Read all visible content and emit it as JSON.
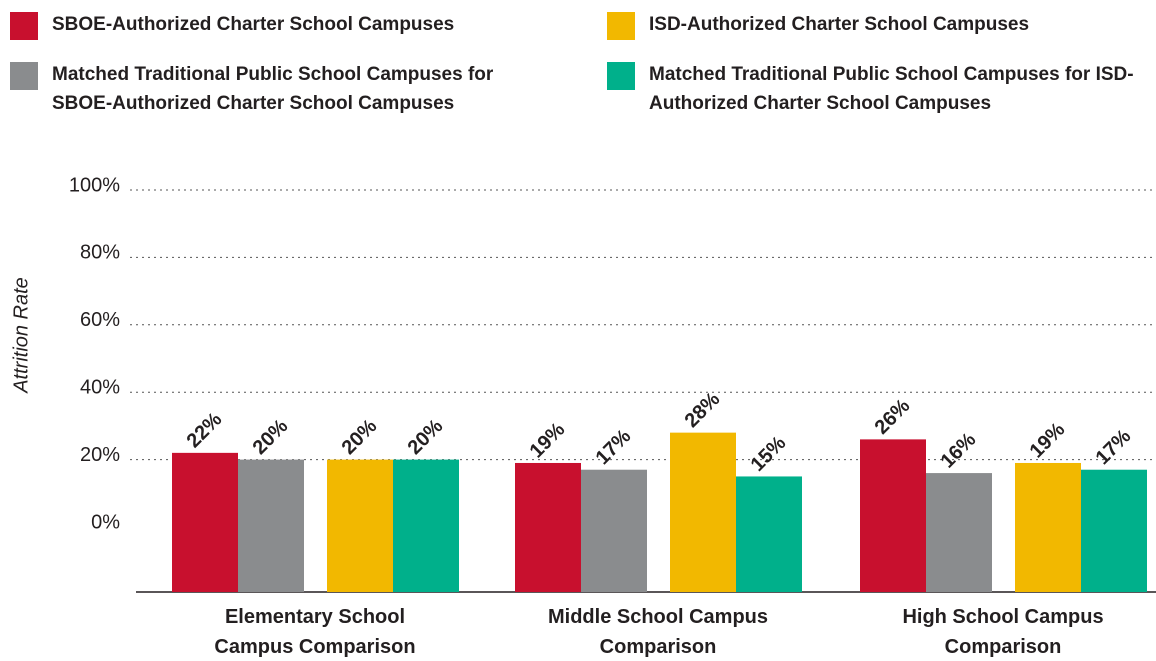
{
  "chart_data": {
    "type": "bar",
    "y_label": "Attrition Rate",
    "categories": [
      "Elementary School Campus Comparison",
      "Middle School Campus Comparison",
      "High School Campus Comparison"
    ],
    "series": [
      {
        "name": "SBOE-Authorized Charter School Campuses",
        "color": "#c8102e",
        "values": [
          22,
          19,
          26
        ],
        "value_labels": [
          "22%",
          "19%",
          "26%"
        ]
      },
      {
        "name": "Matched Traditional Public School Campuses for SBOE-Authorized Charter School Campuses",
        "color": "#8a8c8e",
        "values": [
          20,
          17,
          16
        ],
        "value_labels": [
          "20%",
          "17%",
          "16%"
        ]
      },
      {
        "name": "ISD-Authorized Charter School Campuses",
        "color": "#f2b800",
        "values": [
          20,
          28,
          19
        ],
        "value_labels": [
          "20%",
          "28%",
          "19%"
        ]
      },
      {
        "name": "Matched Traditional Public School Campuses for ISD-Authorized Charter School Campuses",
        "color": "#00b08b",
        "values": [
          20,
          15,
          17
        ],
        "value_labels": [
          "20%",
          "15%",
          "17%"
        ]
      }
    ],
    "ylim": [
      0,
      100
    ],
    "yticks": [
      {
        "value": 0,
        "label": "0%"
      },
      {
        "value": 20,
        "label": "20%"
      },
      {
        "value": 40,
        "label": "40%"
      },
      {
        "value": 60,
        "label": "60%"
      },
      {
        "value": 80,
        "label": "80%"
      },
      {
        "value": 100,
        "label": "100%"
      }
    ],
    "grid": true
  }
}
